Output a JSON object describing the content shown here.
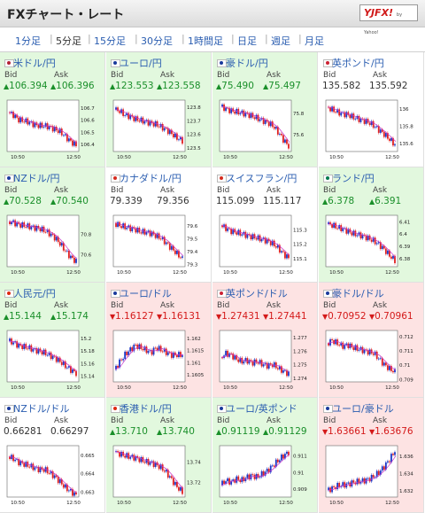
{
  "header": {
    "title": "FXチャート・レート",
    "logo_main": "YJFX!",
    "logo_sub": "by Yahoo!"
  },
  "tabs": [
    {
      "label": "1分足",
      "active": false
    },
    {
      "label": "5分足",
      "active": true
    },
    {
      "label": "15分足",
      "active": false
    },
    {
      "label": "30分足",
      "active": false
    },
    {
      "label": "1時間足",
      "active": false
    },
    {
      "label": "日足",
      "active": false
    },
    {
      "label": "週足",
      "active": false
    },
    {
      "label": "月足",
      "active": false
    }
  ],
  "labels": {
    "bid": "Bid",
    "ask": "Ask"
  },
  "colors": {
    "up": "#1a8f2a",
    "down": "#d41a1a",
    "candle_up": "#1a36c8",
    "candle_down": "#e02020",
    "ma": "#c832c8"
  },
  "pairs": [
    {
      "name": "米ドル/円",
      "dir": "up",
      "bid": "106.394",
      "ask": "106.396",
      "flag": "us-flag",
      "flag_color": "#b22234",
      "y_ticks": [
        "106.7",
        "106.6",
        "106.5",
        "106.4"
      ],
      "y_range": [
        106.34,
        106.76
      ],
      "x_ticks": [
        "10:50",
        "12:50"
      ],
      "trend": [
        106.66,
        106.64,
        106.6,
        106.59,
        106.58,
        106.56,
        106.55,
        106.55,
        106.54,
        106.52,
        106.5,
        106.46,
        106.42,
        106.39
      ]
    },
    {
      "name": "ユーロ/円",
      "dir": "up",
      "bid": "123.553",
      "ask": "123.558",
      "flag": "eu-flag",
      "flag_color": "#1a3a9c",
      "y_ticks": [
        "123.8",
        "123.7",
        "123.6",
        "123.5"
      ],
      "y_range": [
        123.47,
        123.85
      ],
      "x_ticks": [
        "10:50",
        "12:50"
      ],
      "trend": [
        123.78,
        123.77,
        123.74,
        123.73,
        123.71,
        123.7,
        123.69,
        123.68,
        123.67,
        123.65,
        123.63,
        123.6,
        123.57,
        123.55
      ]
    },
    {
      "name": "豪ドル/円",
      "dir": "up",
      "bid": "75.490",
      "ask": "75.497",
      "flag": "au-flag",
      "flag_color": "#1a3a9c",
      "y_ticks": [
        "75.8",
        "75.6"
      ],
      "y_range": [
        75.44,
        75.92
      ],
      "x_ticks": [
        "10:50",
        "12:50"
      ],
      "trend": [
        75.86,
        75.84,
        75.82,
        75.81,
        75.8,
        75.79,
        75.77,
        75.75,
        75.73,
        75.71,
        75.68,
        75.62,
        75.55,
        75.49
      ]
    },
    {
      "name": "英ポンド/円",
      "dir": "flat",
      "bid": "135.582",
      "ask": "135.592",
      "flag": "uk-flag",
      "flag_color": "#cc2233",
      "y_ticks": [
        "136",
        "135.8",
        "135.6"
      ],
      "y_range": [
        135.5,
        136.1
      ],
      "x_ticks": [
        "10:50",
        "12:50"
      ],
      "trend": [
        136.02,
        135.99,
        135.96,
        135.94,
        135.93,
        135.9,
        135.88,
        135.86,
        135.84,
        135.8,
        135.75,
        135.7,
        135.64,
        135.58
      ]
    },
    {
      "name": "NZドル/円",
      "dir": "up",
      "bid": "70.528",
      "ask": "70.540",
      "flag": "nz-flag",
      "flag_color": "#1a3a9c",
      "y_ticks": [
        "70.8",
        "70.6"
      ],
      "y_range": [
        70.48,
        70.98
      ],
      "x_ticks": [
        "10:50",
        "12:50"
      ],
      "trend": [
        70.92,
        70.91,
        70.89,
        70.88,
        70.87,
        70.86,
        70.85,
        70.83,
        70.8,
        70.76,
        70.7,
        70.63,
        70.57,
        70.53
      ]
    },
    {
      "name": "カナダドル/円",
      "dir": "flat",
      "bid": "79.339",
      "ask": "79.356",
      "flag": "ca-flag",
      "flag_color": "#d52b1e",
      "y_ticks": [
        "79.6",
        "79.5",
        "79.4",
        "79.3"
      ],
      "y_range": [
        79.28,
        79.68
      ],
      "x_ticks": [
        "10:50",
        "12:50"
      ],
      "trend": [
        79.62,
        79.6,
        79.59,
        79.58,
        79.57,
        79.55,
        79.55,
        79.54,
        79.52,
        79.5,
        79.46,
        79.42,
        79.38,
        79.34
      ]
    },
    {
      "name": "スイスフラン/円",
      "dir": "flat",
      "bid": "115.099",
      "ask": "115.117",
      "flag": "ch-flag",
      "flag_color": "#d52b1e",
      "y_ticks": [
        "115.3",
        "115.2",
        "115.1"
      ],
      "y_range": [
        115.04,
        115.4
      ],
      "x_ticks": [
        "10:50",
        "12:50"
      ],
      "trend": [
        115.33,
        115.31,
        115.29,
        115.28,
        115.27,
        115.26,
        115.25,
        115.24,
        115.23,
        115.22,
        115.2,
        115.17,
        115.13,
        115.1
      ]
    },
    {
      "name": "ランド/円",
      "dir": "up",
      "bid": "6.378",
      "ask": "6.391",
      "flag": "za-flag",
      "flag_color": "#007a4d",
      "y_ticks": [
        "6.41",
        "6.4",
        "6.39",
        "6.38"
      ],
      "y_range": [
        6.373,
        6.415
      ],
      "x_ticks": [
        "10:50",
        "12:50"
      ],
      "trend": [
        6.408,
        6.407,
        6.405,
        6.404,
        6.402,
        6.4,
        6.399,
        6.398,
        6.396,
        6.394,
        6.391,
        6.387,
        6.382,
        6.378
      ]
    },
    {
      "name": "人民元/円",
      "dir": "up",
      "bid": "15.144",
      "ask": "15.174",
      "flag": "cn-flag",
      "flag_color": "#de2910",
      "y_ticks": [
        "15.2",
        "15.18",
        "15.16",
        "15.14"
      ],
      "y_range": [
        15.13,
        15.212
      ],
      "x_ticks": [
        "10:50",
        "12:50"
      ],
      "trend": [
        15.195,
        15.193,
        15.188,
        15.186,
        15.184,
        15.181,
        15.179,
        15.176,
        15.172,
        15.168,
        15.162,
        15.155,
        15.149,
        15.144
      ]
    },
    {
      "name": "ユーロ/ドル",
      "dir": "down",
      "bid": "1.16127",
      "ask": "1.16131",
      "flag": "eu-flag",
      "flag_color": "#1a3a9c",
      "y_ticks": [
        "1.162",
        "1.1615",
        "1.161",
        "1.1605"
      ],
      "y_range": [
        1.1602,
        1.1623
      ],
      "x_ticks": [
        "10:50",
        "12:50"
      ],
      "trend": [
        1.1607,
        1.161,
        1.1613,
        1.1615,
        1.1617,
        1.1616,
        1.1615,
        1.1614,
        1.1616,
        1.1615,
        1.1614,
        1.1613,
        1.1613,
        1.1613
      ]
    },
    {
      "name": "英ポンド/ドル",
      "dir": "down",
      "bid": "1.27431",
      "ask": "1.27441",
      "flag": "uk-flag",
      "flag_color": "#cc2233",
      "y_ticks": [
        "1.277",
        "1.276",
        "1.275",
        "1.274"
      ],
      "y_range": [
        1.2737,
        1.2775
      ],
      "x_ticks": [
        "10:50",
        "12:50"
      ],
      "trend": [
        1.2755,
        1.2758,
        1.2757,
        1.2754,
        1.2752,
        1.2753,
        1.2751,
        1.2752,
        1.275,
        1.2749,
        1.275,
        1.2747,
        1.2745,
        1.2743
      ]
    },
    {
      "name": "豪ドル/ドル",
      "dir": "down",
      "bid": "0.70952",
      "ask": "0.70961",
      "flag": "au-flag",
      "flag_color": "#1a3a9c",
      "y_ticks": [
        "0.712",
        "0.711",
        "0.71",
        "0.709"
      ],
      "y_range": [
        0.7088,
        0.7124
      ],
      "x_ticks": [
        "10:50",
        "12:50"
      ],
      "trend": [
        0.7115,
        0.7117,
        0.7115,
        0.7113,
        0.7114,
        0.7112,
        0.7111,
        0.711,
        0.7109,
        0.7108,
        0.7104,
        0.71,
        0.7097,
        0.7095
      ]
    },
    {
      "name": "NZドル/ドル",
      "dir": "flat",
      "bid": "0.66281",
      "ask": "0.66297",
      "flag": "nz-flag",
      "flag_color": "#1a3a9c",
      "y_ticks": [
        "0.665",
        "0.664",
        "0.663"
      ],
      "y_range": [
        0.6627,
        0.6655
      ],
      "x_ticks": [
        "10:50",
        "12:50"
      ],
      "trend": [
        0.6649,
        0.6648,
        0.6646,
        0.6645,
        0.6644,
        0.6643,
        0.6642,
        0.6642,
        0.664,
        0.6638,
        0.6635,
        0.6632,
        0.663,
        0.6628
      ]
    },
    {
      "name": "香港ドル/円",
      "dir": "up",
      "bid": "13.710",
      "ask": "13.740",
      "flag": "hk-flag",
      "flag_color": "#de2910",
      "y_ticks": [
        "13.74",
        "13.72"
      ],
      "y_range": [
        13.705,
        13.756
      ],
      "x_ticks": [
        "10:50",
        "12:50"
      ],
      "trend": [
        13.75,
        13.748,
        13.746,
        13.745,
        13.744,
        13.742,
        13.74,
        13.739,
        13.737,
        13.734,
        13.729,
        13.722,
        13.715,
        13.71
      ]
    },
    {
      "name": "ユーロ/英ポンド",
      "dir": "up",
      "bid": "0.91119",
      "ask": "0.91129",
      "flag": "eu-flag",
      "flag_color": "#1a3a9c",
      "y_ticks": [
        "0.911",
        "0.91",
        "0.909"
      ],
      "y_range": [
        0.9085,
        0.9116
      ],
      "x_ticks": [
        "10:50",
        "12:50"
      ],
      "trend": [
        0.9092,
        0.9095,
        0.9094,
        0.9096,
        0.9095,
        0.9097,
        0.9098,
        0.9097,
        0.9099,
        0.9101,
        0.9104,
        0.9107,
        0.911,
        0.9112
      ]
    },
    {
      "name": "ユーロ/豪ドル",
      "dir": "down",
      "bid": "1.63661",
      "ask": "1.63676",
      "flag": "eu-flag",
      "flag_color": "#1a3a9c",
      "y_ticks": [
        "1.636",
        "1.634",
        "1.632"
      ],
      "y_range": [
        1.6312,
        1.6372
      ],
      "x_ticks": [
        "10:50",
        "12:50"
      ],
      "trend": [
        1.632,
        1.6322,
        1.6325,
        1.6326,
        1.6327,
        1.6329,
        1.633,
        1.6331,
        1.6333,
        1.6336,
        1.6341,
        1.6348,
        1.6356,
        1.6366
      ]
    }
  ]
}
